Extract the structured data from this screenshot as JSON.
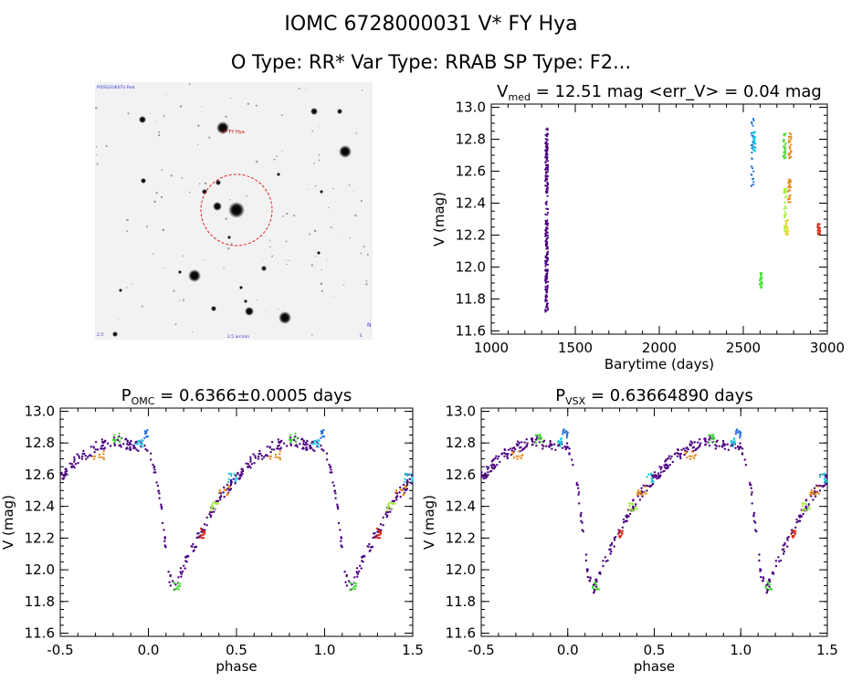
{
  "header": {
    "title": "IOMC 6728000031    V* FY Hya",
    "subtitle": "O Type: RR*   Var Type: RRAB   SP Type: F2..."
  },
  "image_panel": {
    "top_left_label": "POSS2/UKSTU Red",
    "target_label": "V* FY Hya",
    "bottom_center_label": "2.5 arcmin",
    "bottom_right_label": "E",
    "right_label": "N",
    "left_label": "2.5'"
  },
  "colors": {
    "purple": "#4b0082",
    "blue": "#1e6ed2",
    "cyan": "#19c8dc",
    "green": "#4cdc3c",
    "lime": "#a0f03c",
    "yellow": "#e6dc32",
    "orange": "#e68c1e",
    "red": "#dc2814"
  },
  "chart_data": [
    {
      "type": "scatter",
      "panel": "light_curve",
      "title_main": "V",
      "title_sub": "med",
      "title_rest": "= 12.51 mag <err_V> = 0.04 mag",
      "xlabel": "Barytime (days)",
      "ylabel": "V (mag)",
      "xlim": [
        1000,
        3000
      ],
      "ylim": [
        13.02,
        11.58
      ],
      "x_ticks": [
        1000,
        1500,
        2000,
        2500,
        3000
      ],
      "y_ticks": [
        11.6,
        11.8,
        12.0,
        12.2,
        12.4,
        12.6,
        12.8,
        13.0
      ],
      "y_tick_labels": [
        "11.6",
        "11.8",
        "12.0",
        "12.2",
        "12.4",
        "12.6",
        "12.8",
        "13.0"
      ],
      "series": [
        {
          "color": "purple",
          "x": [
            1330
          ],
          "ymin": 11.72,
          "ymax": 12.87
        },
        {
          "color": "blue",
          "x": [
            2555
          ],
          "ymin": 12.5,
          "ymax": 12.93
        },
        {
          "color": "cyan",
          "x": [
            2565
          ],
          "ymin": 12.72,
          "ymax": 12.85
        },
        {
          "color": "green",
          "x": [
            2605
          ],
          "ymin": 11.87,
          "ymax": 11.97
        },
        {
          "color": "green",
          "x": [
            2745
          ],
          "ymin": 12.68,
          "ymax": 12.84
        },
        {
          "color": "lime",
          "x": [
            2750
          ],
          "ymin": 12.2,
          "ymax": 12.5
        },
        {
          "color": "yellow",
          "x": [
            2760
          ],
          "ymin": 12.2,
          "ymax": 12.3
        },
        {
          "color": "orange",
          "x": [
            2775
          ],
          "ymin": 12.4,
          "ymax": 12.56
        },
        {
          "color": "orange",
          "x": [
            2778
          ],
          "ymin": 12.68,
          "ymax": 12.84
        },
        {
          "color": "red",
          "x": [
            2950
          ],
          "ymin": 12.2,
          "ymax": 12.27
        }
      ]
    },
    {
      "type": "scatter",
      "panel": "phase_omc",
      "title_main": "P",
      "title_sub": "OMC",
      "title_rest": "= 0.6366±0.0005 days",
      "xlabel": "phase",
      "ylabel": "V (mag)",
      "xlim": [
        -0.5,
        1.5
      ],
      "ylim": [
        13.02,
        11.58
      ],
      "x_ticks": [
        -0.5,
        0.0,
        0.5,
        1.0,
        1.5
      ],
      "x_tick_labels": [
        "-0.5",
        "0.0",
        "0.5",
        "1.0",
        "1.5"
      ],
      "y_ticks": [
        11.6,
        11.8,
        12.0,
        12.2,
        12.4,
        12.6,
        12.8,
        13.0
      ],
      "y_tick_labels": [
        "11.6",
        "11.8",
        "12.0",
        "12.2",
        "12.4",
        "12.6",
        "12.8",
        "13.0"
      ],
      "template": {
        "phase": [
          0.0,
          0.06,
          0.12,
          0.15,
          0.2,
          0.3,
          0.4,
          0.5,
          0.6,
          0.7,
          0.8,
          0.85,
          0.95,
          1.0
        ],
        "mag": [
          12.78,
          12.5,
          11.95,
          11.88,
          12.02,
          12.24,
          12.45,
          12.58,
          12.7,
          12.77,
          12.82,
          12.8,
          12.78,
          12.78
        ]
      },
      "colored_groups": [
        {
          "color": "green",
          "phase_min": 0.14,
          "phase_max": 0.18,
          "mag": 11.9
        },
        {
          "color": "red",
          "phase_min": 0.29,
          "phase_max": 0.32,
          "mag": 12.23
        },
        {
          "color": "lime",
          "phase_min": 0.35,
          "phase_max": 0.4,
          "mag": 12.4
        },
        {
          "color": "orange",
          "phase_min": 0.4,
          "phase_max": 0.46,
          "mag": 12.5
        },
        {
          "color": "cyan",
          "phase_min": 0.45,
          "phase_max": 0.5,
          "mag": 12.58
        },
        {
          "color": "orange",
          "phase_min": 0.68,
          "phase_max": 0.75,
          "mag": 12.72
        },
        {
          "color": "green",
          "phase_min": 0.8,
          "phase_max": 0.85,
          "mag": 12.83
        },
        {
          "color": "cyan",
          "phase_min": 0.93,
          "phase_max": 0.97,
          "mag": 12.8
        },
        {
          "color": "blue",
          "phase_min": 0.97,
          "phase_max": 1.0,
          "mag": 12.86
        }
      ]
    },
    {
      "type": "scatter",
      "panel": "phase_vsx",
      "title_main": "P",
      "title_sub": "VSX",
      "title_rest": "= 0.63664890 days",
      "xlabel": "phase",
      "ylabel": "V (mag)",
      "xlim": [
        -0.5,
        1.5
      ],
      "ylim": [
        13.02,
        11.58
      ],
      "x_ticks": [
        -0.5,
        0.0,
        0.5,
        1.0,
        1.5
      ],
      "x_tick_labels": [
        "-0.5",
        "0.0",
        "0.5",
        "1.0",
        "1.5"
      ],
      "y_ticks": [
        11.6,
        11.8,
        12.0,
        12.2,
        12.4,
        12.6,
        12.8,
        13.0
      ],
      "y_tick_labels": [
        "11.6",
        "11.8",
        "12.0",
        "12.2",
        "12.4",
        "12.6",
        "12.8",
        "13.0"
      ]
    }
  ]
}
